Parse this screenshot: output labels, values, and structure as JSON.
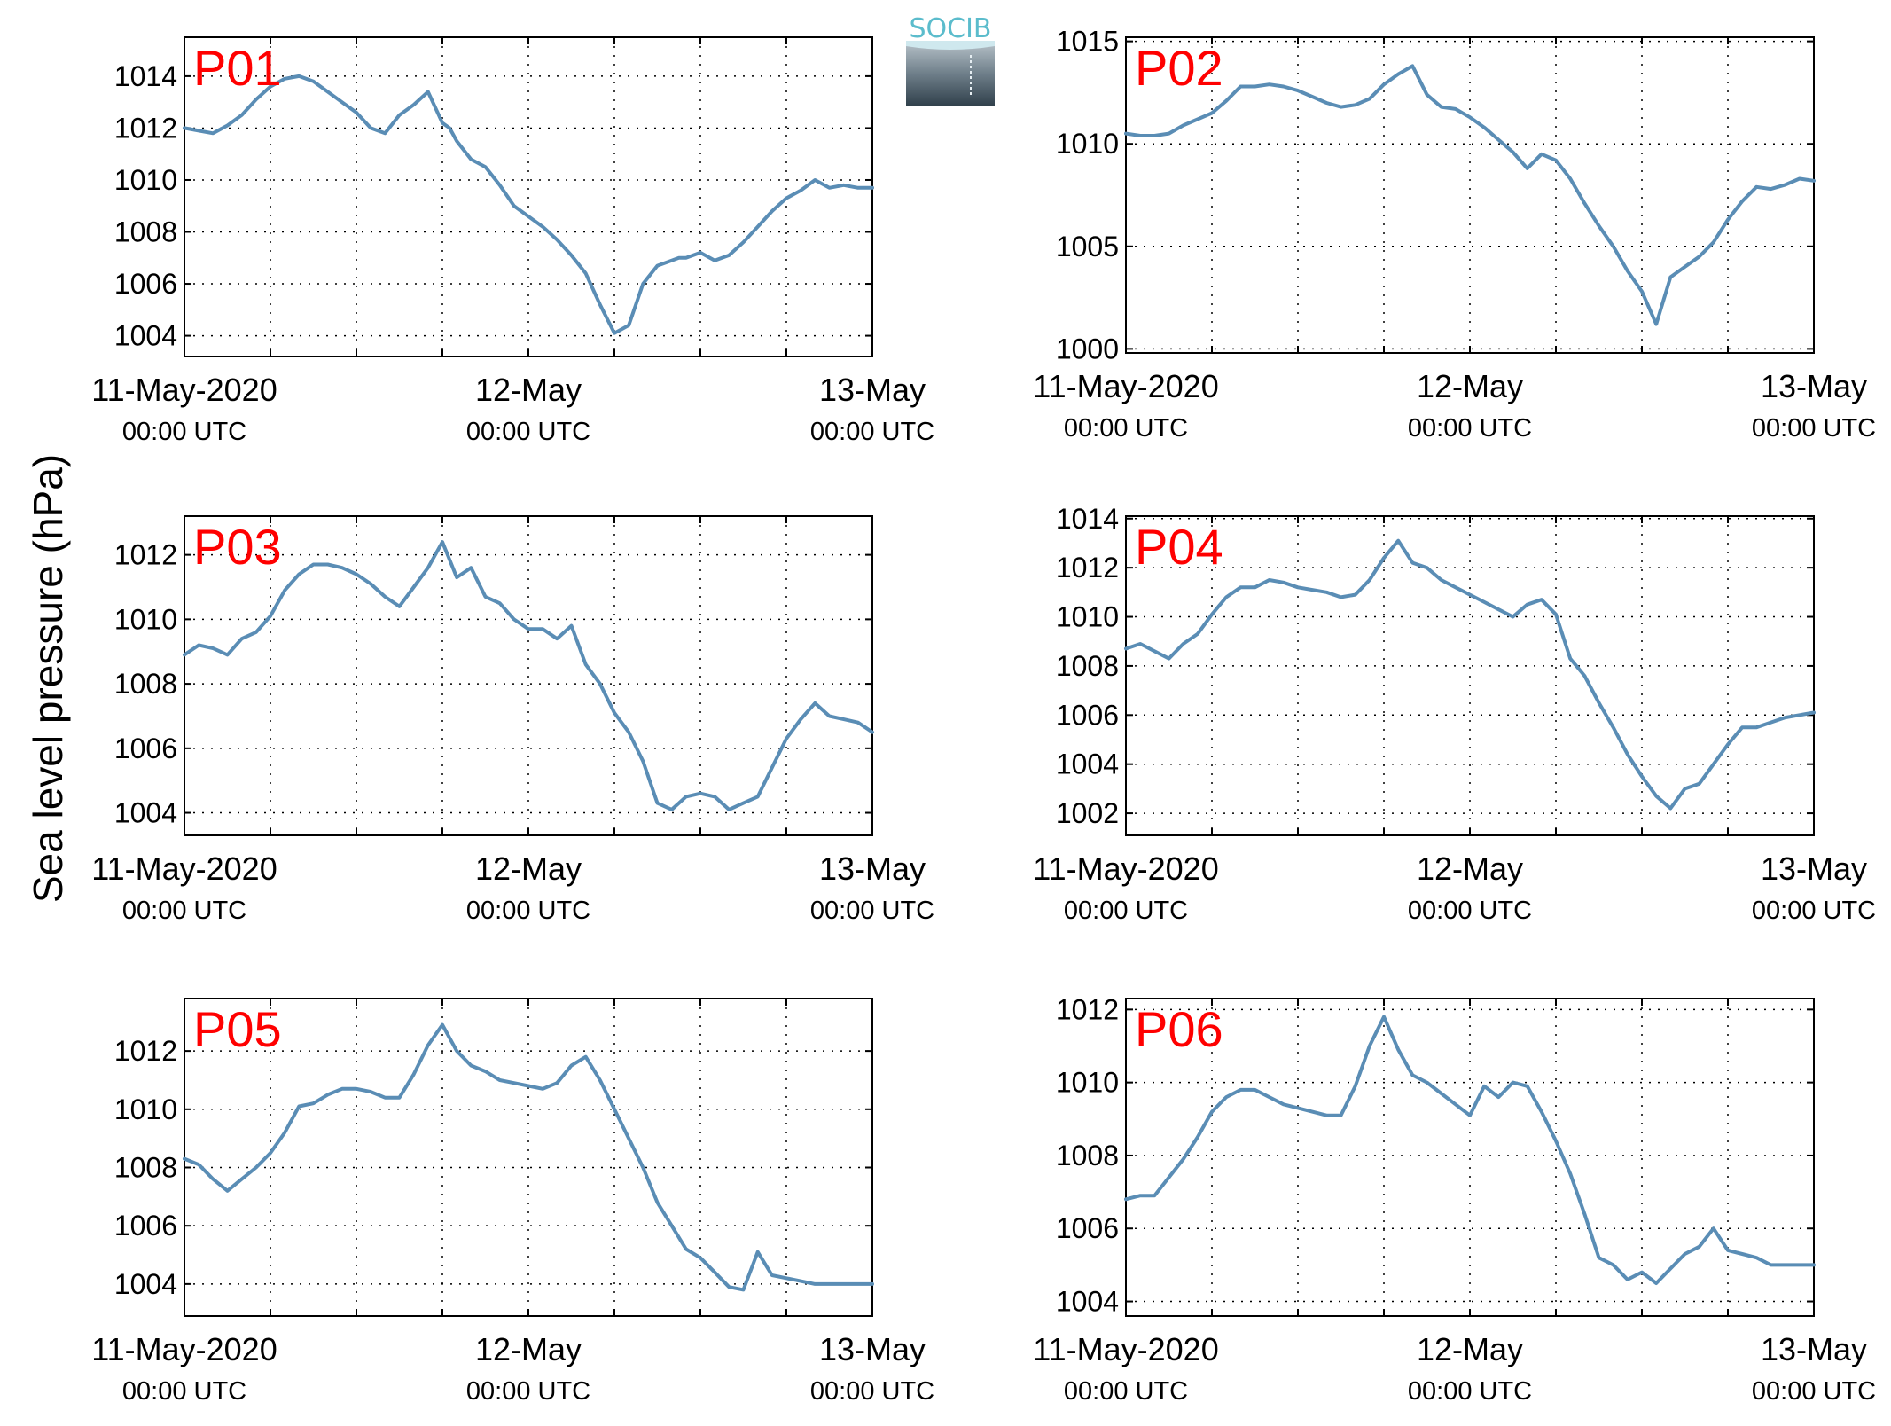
{
  "figure": {
    "ylabel": "Sea level pressure (hPa)",
    "logo": {
      "text": "SOCIB",
      "color": "#5bbccc"
    },
    "line_color": "#5a8db5",
    "panel_label_color": "#ff0000"
  },
  "chart_data": [
    {
      "type": "line",
      "panel": "P01",
      "x_ticks": [
        "11-May-2020",
        "12-May",
        "13-May"
      ],
      "x_tick_sublabels": [
        "00:00 UTC",
        "00:00 UTC",
        "00:00 UTC"
      ],
      "xlim_hours": [
        0,
        48
      ],
      "ylim": [
        1003.2,
        1015.5
      ],
      "y_ticks": [
        1004,
        1006,
        1008,
        1010,
        1012,
        1014
      ],
      "grid": true,
      "series": [
        {
          "x": [
            0,
            1,
            2,
            3,
            4,
            5,
            6,
            7,
            8,
            9,
            10,
            11,
            12,
            13,
            14,
            15,
            16,
            17,
            18,
            18.5,
            19,
            20,
            21,
            22,
            23,
            24,
            25,
            26,
            27,
            28,
            29,
            30,
            31,
            32,
            33,
            34,
            34.5,
            35,
            36,
            37,
            38,
            39,
            40,
            41,
            42,
            43,
            44,
            45,
            46,
            47,
            48
          ],
          "y": [
            1012.0,
            1011.9,
            1011.8,
            1012.1,
            1012.5,
            1013.1,
            1013.6,
            1013.9,
            1014.0,
            1013.8,
            1013.4,
            1013.0,
            1012.6,
            1012.0,
            1011.8,
            1012.5,
            1012.9,
            1013.4,
            1012.2,
            1012.0,
            1011.5,
            1010.8,
            1010.5,
            1009.8,
            1009.0,
            1008.6,
            1008.2,
            1007.7,
            1007.1,
            1006.4,
            1005.2,
            1004.1,
            1004.4,
            1006.0,
            1006.7,
            1006.9,
            1007.0,
            1007.0,
            1007.2,
            1006.9,
            1007.1,
            1007.6,
            1008.2,
            1008.8,
            1009.3,
            1009.6,
            1010.0,
            1009.7,
            1009.8,
            1009.7,
            1009.7
          ]
        }
      ]
    },
    {
      "type": "line",
      "panel": "P02",
      "x_ticks": [
        "11-May-2020",
        "12-May",
        "13-May"
      ],
      "x_tick_sublabels": [
        "00:00 UTC",
        "00:00 UTC",
        "00:00 UTC"
      ],
      "xlim_hours": [
        0,
        48
      ],
      "ylim": [
        999.8,
        1015.2
      ],
      "y_ticks": [
        1000,
        1005,
        1010,
        1015
      ],
      "grid": true,
      "series": [
        {
          "x": [
            0,
            1,
            2,
            3,
            4,
            5,
            6,
            7,
            8,
            9,
            10,
            11,
            12,
            13,
            14,
            15,
            16,
            17,
            18,
            19,
            20,
            21,
            22,
            23,
            24,
            25,
            26,
            27,
            28,
            29,
            30,
            31,
            32,
            33,
            34,
            35,
            36,
            37,
            38,
            39,
            40,
            41,
            42,
            43,
            44,
            45,
            46,
            47,
            48
          ],
          "y": [
            1010.5,
            1010.4,
            1010.4,
            1010.5,
            1010.9,
            1011.2,
            1011.5,
            1012.1,
            1012.8,
            1012.8,
            1012.9,
            1012.8,
            1012.6,
            1012.3,
            1012.0,
            1011.8,
            1011.9,
            1012.2,
            1012.9,
            1013.4,
            1013.8,
            1012.4,
            1011.8,
            1011.7,
            1011.3,
            1010.8,
            1010.2,
            1009.6,
            1008.8,
            1009.5,
            1009.2,
            1008.3,
            1007.1,
            1006.0,
            1005.0,
            1003.8,
            1002.8,
            1001.2,
            1003.5,
            1004.0,
            1004.5,
            1005.2,
            1006.3,
            1007.2,
            1007.9,
            1007.8,
            1008.0,
            1008.3,
            1008.2
          ]
        }
      ]
    },
    {
      "type": "line",
      "panel": "P03",
      "x_ticks": [
        "11-May-2020",
        "12-May",
        "13-May"
      ],
      "x_tick_sublabels": [
        "00:00 UTC",
        "00:00 UTC",
        "00:00 UTC"
      ],
      "xlim_hours": [
        0,
        48
      ],
      "ylim": [
        1003.3,
        1013.2
      ],
      "y_ticks": [
        1004,
        1006,
        1008,
        1010,
        1012
      ],
      "grid": true,
      "series": [
        {
          "x": [
            0,
            1,
            2,
            3,
            4,
            5,
            6,
            7,
            8,
            9,
            10,
            11,
            12,
            13,
            14,
            15,
            16,
            17,
            18,
            19,
            20,
            21,
            22,
            23,
            24,
            25,
            26,
            27,
            28,
            29,
            30,
            31,
            32,
            33,
            34,
            35,
            36,
            37,
            38,
            39,
            40,
            41,
            42,
            43,
            44,
            45,
            46,
            47,
            48
          ],
          "y": [
            1008.9,
            1009.2,
            1009.1,
            1008.9,
            1009.4,
            1009.6,
            1010.1,
            1010.9,
            1011.4,
            1011.7,
            1011.7,
            1011.6,
            1011.4,
            1011.1,
            1010.7,
            1010.4,
            1011.0,
            1011.6,
            1012.4,
            1011.3,
            1011.6,
            1010.7,
            1010.5,
            1010.0,
            1009.7,
            1009.7,
            1009.4,
            1009.8,
            1008.6,
            1008.0,
            1007.1,
            1006.5,
            1005.6,
            1004.3,
            1004.1,
            1004.5,
            1004.6,
            1004.5,
            1004.1,
            1004.3,
            1004.5,
            1005.4,
            1006.3,
            1006.9,
            1007.4,
            1007.0,
            1006.9,
            1006.8,
            1006.5
          ]
        }
      ]
    },
    {
      "type": "line",
      "panel": "P04",
      "x_ticks": [
        "11-May-2020",
        "12-May",
        "13-May"
      ],
      "x_tick_sublabels": [
        "00:00 UTC",
        "00:00 UTC",
        "00:00 UTC"
      ],
      "xlim_hours": [
        0,
        48
      ],
      "ylim": [
        1001.1,
        1014.1
      ],
      "y_ticks": [
        1002,
        1004,
        1006,
        1008,
        1010,
        1012,
        1014
      ],
      "grid": true,
      "series": [
        {
          "x": [
            0,
            1,
            2,
            3,
            4,
            5,
            6,
            7,
            8,
            9,
            10,
            11,
            12,
            13,
            14,
            15,
            16,
            17,
            18,
            19,
            20,
            21,
            22,
            23,
            24,
            25,
            26,
            27,
            28,
            29,
            30,
            31,
            32,
            33,
            34,
            35,
            36,
            37,
            38,
            39,
            40,
            41,
            42,
            43,
            44,
            45,
            46,
            47,
            48
          ],
          "y": [
            1008.7,
            1008.9,
            1008.6,
            1008.3,
            1008.9,
            1009.3,
            1010.1,
            1010.8,
            1011.2,
            1011.2,
            1011.5,
            1011.4,
            1011.2,
            1011.1,
            1011.0,
            1010.8,
            1010.9,
            1011.5,
            1012.4,
            1013.1,
            1012.2,
            1012.0,
            1011.5,
            1011.2,
            1010.9,
            1010.6,
            1010.3,
            1010.0,
            1010.5,
            1010.7,
            1010.1,
            1008.3,
            1007.6,
            1006.5,
            1005.5,
            1004.4,
            1003.5,
            1002.7,
            1002.2,
            1003.0,
            1003.2,
            1004.0,
            1004.8,
            1005.5,
            1005.5,
            1005.7,
            1005.9,
            1006.0,
            1006.1
          ]
        }
      ]
    },
    {
      "type": "line",
      "panel": "P05",
      "x_ticks": [
        "11-May-2020",
        "12-May",
        "13-May"
      ],
      "x_tick_sublabels": [
        "00:00 UTC",
        "00:00 UTC",
        "00:00 UTC"
      ],
      "xlim_hours": [
        0,
        48
      ],
      "ylim": [
        1002.9,
        1013.8
      ],
      "y_ticks": [
        1004,
        1006,
        1008,
        1010,
        1012
      ],
      "grid": true,
      "series": [
        {
          "x": [
            0,
            1,
            2,
            3,
            4,
            5,
            6,
            7,
            8,
            9,
            10,
            11,
            12,
            13,
            14,
            15,
            16,
            17,
            18,
            19,
            20,
            21,
            22,
            23,
            24,
            25,
            26,
            27,
            28,
            29,
            30,
            31,
            32,
            33,
            34,
            35,
            36,
            37,
            38,
            39,
            40,
            41,
            42,
            43,
            44,
            45,
            46,
            47,
            48
          ],
          "y": [
            1008.3,
            1008.1,
            1007.6,
            1007.2,
            1007.6,
            1008.0,
            1008.5,
            1009.2,
            1010.1,
            1010.2,
            1010.5,
            1010.7,
            1010.7,
            1010.6,
            1010.4,
            1010.4,
            1011.2,
            1012.2,
            1012.9,
            1012.0,
            1011.5,
            1011.3,
            1011.0,
            1010.9,
            1010.8,
            1010.7,
            1010.9,
            1011.5,
            1011.8,
            1011.0,
            1010.0,
            1009.0,
            1008.0,
            1006.8,
            1006.0,
            1005.2,
            1004.9,
            1004.4,
            1003.9,
            1003.8,
            1005.1,
            1004.3,
            1004.2,
            1004.1,
            1004.0,
            1004.0,
            1004.0,
            1004.0,
            1004.0
          ]
        }
      ]
    },
    {
      "type": "line",
      "panel": "P06",
      "x_ticks": [
        "11-May-2020",
        "12-May",
        "13-May"
      ],
      "x_tick_sublabels": [
        "00:00 UTC",
        "00:00 UTC",
        "00:00 UTC"
      ],
      "xlim_hours": [
        0,
        48
      ],
      "ylim": [
        1003.6,
        1012.3
      ],
      "y_ticks": [
        1004,
        1006,
        1008,
        1010,
        1012
      ],
      "grid": true,
      "series": [
        {
          "x": [
            0,
            1,
            2,
            3,
            4,
            5,
            6,
            7,
            8,
            9,
            10,
            11,
            12,
            13,
            14,
            15,
            16,
            17,
            18,
            19,
            20,
            21,
            22,
            23,
            24,
            25,
            26,
            27,
            28,
            29,
            30,
            31,
            32,
            33,
            34,
            35,
            36,
            37,
            38,
            39,
            40,
            41,
            42,
            43,
            44,
            45,
            46,
            47,
            48
          ],
          "y": [
            1006.8,
            1006.9,
            1006.9,
            1007.4,
            1007.9,
            1008.5,
            1009.2,
            1009.6,
            1009.8,
            1009.8,
            1009.6,
            1009.4,
            1009.3,
            1009.2,
            1009.1,
            1009.1,
            1009.9,
            1011.0,
            1011.8,
            1010.9,
            1010.2,
            1010.0,
            1009.7,
            1009.4,
            1009.1,
            1009.9,
            1009.6,
            1010.0,
            1009.9,
            1009.2,
            1008.4,
            1007.5,
            1006.4,
            1005.2,
            1005.0,
            1004.6,
            1004.8,
            1004.5,
            1004.9,
            1005.3,
            1005.5,
            1006.0,
            1005.4,
            1005.3,
            1005.2,
            1005.0,
            1005.0,
            1005.0,
            1005.0
          ]
        }
      ]
    }
  ]
}
